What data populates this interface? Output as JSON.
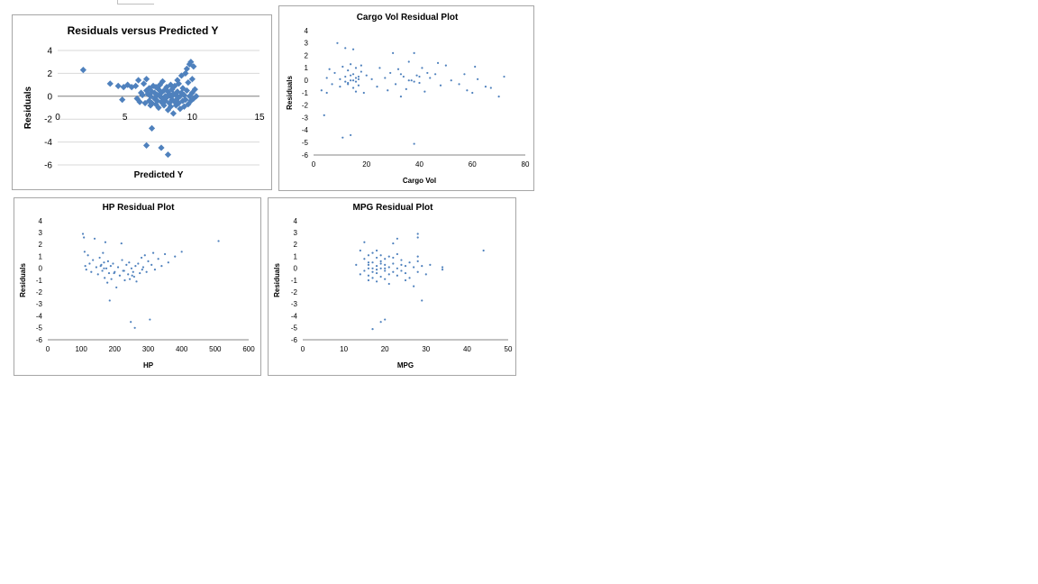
{
  "colors": {
    "marker": "#4f81bd",
    "gridline": "#d9d9d9",
    "axis": "#868686",
    "border": "#a6a6a6"
  },
  "chart_data": [
    {
      "id": "predicted",
      "type": "scatter",
      "title": "Residuals versus Predicted Y",
      "xlabel": "Predicted Y",
      "ylabel": "Residuals",
      "xlim": [
        0,
        15
      ],
      "ylim": [
        -6,
        4
      ],
      "xticks": [
        0,
        5,
        10,
        15
      ],
      "yticks": [
        -6,
        -4,
        -2,
        0,
        2,
        4
      ],
      "xticks_at_zero": true,
      "grid": "horizontal",
      "marker": "diamond",
      "points": [
        [
          1.9,
          2.3
        ],
        [
          3.9,
          1.1
        ],
        [
          4.5,
          0.9
        ],
        [
          4.8,
          -0.3
        ],
        [
          4.9,
          0.8
        ],
        [
          5.2,
          1.0
        ],
        [
          5.5,
          0.8
        ],
        [
          5.8,
          0.9
        ],
        [
          5.9,
          -0.2
        ],
        [
          6.0,
          1.4
        ],
        [
          6.1,
          -0.5
        ],
        [
          6.2,
          0.3
        ],
        [
          6.3,
          0.1
        ],
        [
          6.4,
          1.1
        ],
        [
          6.5,
          -0.6
        ],
        [
          6.6,
          0.5
        ],
        [
          6.6,
          1.5
        ],
        [
          6.7,
          0.2
        ],
        [
          6.8,
          -0.4
        ],
        [
          6.9,
          -0.8
        ],
        [
          6.9,
          0.0
        ],
        [
          7.0,
          0.4
        ],
        [
          7.0,
          -0.6
        ],
        [
          7.1,
          0.9
        ],
        [
          7.2,
          -0.2
        ],
        [
          7.2,
          0.3
        ],
        [
          7.3,
          -0.7
        ],
        [
          7.4,
          0.1
        ],
        [
          7.4,
          -0.4
        ],
        [
          7.5,
          0.6
        ],
        [
          7.5,
          -1.0
        ],
        [
          7.6,
          0.0
        ],
        [
          7.6,
          1.0
        ],
        [
          7.7,
          -0.5
        ],
        [
          7.7,
          0.3
        ],
        [
          7.8,
          -0.2
        ],
        [
          7.8,
          1.3
        ],
        [
          7.9,
          -0.8
        ],
        [
          7.9,
          0.5
        ],
        [
          8.0,
          0.0
        ],
        [
          8.0,
          -0.4
        ],
        [
          8.1,
          0.8
        ],
        [
          8.1,
          -0.1
        ],
        [
          8.2,
          -1.2
        ],
        [
          8.2,
          0.4
        ],
        [
          8.3,
          -0.6
        ],
        [
          8.3,
          0.2
        ],
        [
          8.4,
          0.0
        ],
        [
          8.4,
          -0.9
        ],
        [
          8.5,
          0.6
        ],
        [
          8.5,
          -0.3
        ],
        [
          8.6,
          -1.5
        ],
        [
          8.6,
          0.2
        ],
        [
          8.7,
          0.9
        ],
        [
          8.7,
          -0.5
        ],
        [
          8.8,
          0.1
        ],
        [
          8.8,
          -0.8
        ],
        [
          8.9,
          0.4
        ],
        [
          8.9,
          -0.2
        ],
        [
          9.0,
          1.1
        ],
        [
          9.0,
          -0.6
        ],
        [
          9.1,
          0.0
        ],
        [
          9.1,
          -1.1
        ],
        [
          9.2,
          0.3
        ],
        [
          9.2,
          1.8
        ],
        [
          9.3,
          -0.4
        ],
        [
          9.3,
          0.7
        ],
        [
          9.4,
          -0.9
        ],
        [
          9.4,
          0.1
        ],
        [
          9.5,
          2.0
        ],
        [
          9.5,
          -0.3
        ],
        [
          9.6,
          0.5
        ],
        [
          9.6,
          2.4
        ],
        [
          9.7,
          -0.7
        ],
        [
          9.7,
          1.2
        ],
        [
          9.8,
          2.8
        ],
        [
          9.8,
          0.0
        ],
        [
          9.9,
          3.0
        ],
        [
          9.9,
          -0.4
        ],
        [
          10.0,
          1.5
        ],
        [
          10.0,
          0.3
        ],
        [
          10.1,
          2.6
        ],
        [
          10.1,
          -0.2
        ],
        [
          10.2,
          0.6
        ],
        [
          10.3,
          0.0
        ],
        [
          8.5,
          0.0
        ],
        [
          7.3,
          0.8
        ],
        [
          6.8,
          0.7
        ],
        [
          8.9,
          1.4
        ],
        [
          8.4,
          1.0
        ],
        [
          7.0,
          -2.8
        ],
        [
          6.6,
          -4.3
        ],
        [
          7.7,
          -4.5
        ],
        [
          8.2,
          -5.1
        ]
      ]
    },
    {
      "id": "cargo",
      "type": "scatter",
      "title": "Cargo Vol  Residual Plot",
      "xlabel": "Cargo Vol",
      "ylabel": "Residuals",
      "xlim": [
        0,
        80
      ],
      "ylim": [
        -6,
        4
      ],
      "xticks": [
        0,
        20,
        40,
        60,
        80
      ],
      "yticks": [
        -6,
        -5,
        -4,
        -3,
        -2,
        -1,
        0,
        1,
        2,
        3,
        4
      ],
      "grid": "none",
      "marker": "dot",
      "points": [
        [
          3,
          -0.8
        ],
        [
          4,
          -2.8
        ],
        [
          5,
          0.2
        ],
        [
          5,
          -1.0
        ],
        [
          6,
          0.9
        ],
        [
          7,
          -0.3
        ],
        [
          8,
          0.6
        ],
        [
          9,
          3.0
        ],
        [
          10,
          0.1
        ],
        [
          10,
          -0.5
        ],
        [
          11,
          1.1
        ],
        [
          11,
          -4.6
        ],
        [
          12,
          2.6
        ],
        [
          12,
          0.3
        ],
        [
          13,
          -0.2
        ],
        [
          13,
          0.8
        ],
        [
          14,
          0.0
        ],
        [
          14,
          -4.4
        ],
        [
          14,
          1.3
        ],
        [
          15,
          -0.6
        ],
        [
          15,
          0.5
        ],
        [
          15,
          2.5
        ],
        [
          16,
          -0.1
        ],
        [
          16,
          1.0
        ],
        [
          16,
          -0.9
        ],
        [
          17,
          0.3
        ],
        [
          17,
          -0.4
        ],
        [
          18,
          0.7
        ],
        [
          18,
          1.2
        ],
        [
          19,
          -1.0
        ],
        [
          20,
          0.4
        ],
        [
          22,
          0.1
        ],
        [
          24,
          -0.5
        ],
        [
          25,
          1.0
        ],
        [
          27,
          0.2
        ],
        [
          28,
          -0.8
        ],
        [
          29,
          0.6
        ],
        [
          30,
          2.2
        ],
        [
          31,
          -0.3
        ],
        [
          32,
          0.9
        ],
        [
          33,
          -1.3
        ],
        [
          34,
          0.3
        ],
        [
          35,
          -0.7
        ],
        [
          36,
          1.5
        ],
        [
          37,
          0.0
        ],
        [
          38,
          -5.1
        ],
        [
          38,
          2.2
        ],
        [
          39,
          0.4
        ],
        [
          40,
          -0.2
        ],
        [
          41,
          1.0
        ],
        [
          42,
          -0.9
        ],
        [
          44,
          0.2
        ],
        [
          46,
          0.5
        ],
        [
          47,
          1.4
        ],
        [
          48,
          -0.4
        ],
        [
          50,
          1.2
        ],
        [
          52,
          0.0
        ],
        [
          55,
          -0.3
        ],
        [
          57,
          0.5
        ],
        [
          58,
          -0.8
        ],
        [
          60,
          -1.0
        ],
        [
          61,
          1.1
        ],
        [
          62,
          0.1
        ],
        [
          65,
          -0.5
        ],
        [
          67,
          -0.6
        ],
        [
          70,
          -1.3
        ],
        [
          72,
          0.3
        ],
        [
          13,
          -0.3
        ],
        [
          14,
          0.4
        ],
        [
          15,
          0.0
        ],
        [
          16,
          0.2
        ],
        [
          12,
          -0.1
        ],
        [
          17,
          0.1
        ],
        [
          36,
          0.0
        ],
        [
          38,
          -0.1
        ],
        [
          40,
          0.3
        ],
        [
          43,
          0.6
        ],
        [
          33,
          0.5
        ]
      ]
    },
    {
      "id": "hp",
      "type": "scatter",
      "title": "HP  Residual Plot",
      "xlabel": "HP",
      "ylabel": "Residuals",
      "xlim": [
        0,
        600
      ],
      "ylim": [
        -6,
        4
      ],
      "xticks": [
        0,
        100,
        200,
        300,
        400,
        500,
        600
      ],
      "yticks": [
        -6,
        -5,
        -4,
        -3,
        -2,
        -1,
        0,
        1,
        2,
        3,
        4
      ],
      "grid": "none",
      "marker": "dot",
      "points": [
        [
          105,
          2.9
        ],
        [
          108,
          2.6
        ],
        [
          110,
          1.4
        ],
        [
          112,
          0.2
        ],
        [
          115,
          -0.1
        ],
        [
          120,
          1.1
        ],
        [
          125,
          0.4
        ],
        [
          130,
          -0.3
        ],
        [
          135,
          0.7
        ],
        [
          140,
          2.5
        ],
        [
          145,
          0.1
        ],
        [
          150,
          -0.5
        ],
        [
          155,
          0.9
        ],
        [
          160,
          0.3
        ],
        [
          163,
          -0.2
        ],
        [
          165,
          1.3
        ],
        [
          168,
          0.5
        ],
        [
          170,
          -0.8
        ],
        [
          172,
          2.2
        ],
        [
          175,
          0.0
        ],
        [
          178,
          -1.2
        ],
        [
          180,
          0.6
        ],
        [
          183,
          -0.4
        ],
        [
          185,
          -2.7
        ],
        [
          188,
          0.2
        ],
        [
          190,
          -0.9
        ],
        [
          195,
          0.4
        ],
        [
          200,
          -0.3
        ],
        [
          205,
          -1.6
        ],
        [
          210,
          0.1
        ],
        [
          215,
          -0.6
        ],
        [
          220,
          2.1
        ],
        [
          222,
          0.7
        ],
        [
          225,
          -0.2
        ],
        [
          230,
          -1.0
        ],
        [
          235,
          0.3
        ],
        [
          240,
          -0.5
        ],
        [
          243,
          0.5
        ],
        [
          245,
          -0.9
        ],
        [
          248,
          -4.5
        ],
        [
          250,
          0.0
        ],
        [
          255,
          -0.3
        ],
        [
          258,
          -0.7
        ],
        [
          260,
          -5.0
        ],
        [
          262,
          0.2
        ],
        [
          265,
          -1.1
        ],
        [
          270,
          0.4
        ],
        [
          275,
          -0.4
        ],
        [
          280,
          0.9
        ],
        [
          285,
          0.1
        ],
        [
          290,
          1.1
        ],
        [
          295,
          -0.3
        ],
        [
          300,
          0.6
        ],
        [
          305,
          -4.3
        ],
        [
          310,
          0.3
        ],
        [
          315,
          1.3
        ],
        [
          320,
          -0.1
        ],
        [
          330,
          0.8
        ],
        [
          340,
          0.2
        ],
        [
          350,
          1.2
        ],
        [
          360,
          0.5
        ],
        [
          380,
          1.0
        ],
        [
          400,
          1.4
        ],
        [
          510,
          2.3
        ],
        [
          158,
          0.2
        ],
        [
          168,
          0.0
        ],
        [
          198,
          -0.4
        ],
        [
          228,
          -0.2
        ],
        [
          252,
          -0.6
        ],
        [
          282,
          -0.1
        ]
      ]
    },
    {
      "id": "mpg",
      "type": "scatter",
      "title": "MPG  Residual Plot",
      "xlabel": "MPG",
      "ylabel": "Residuals",
      "xlim": [
        0,
        50
      ],
      "ylim": [
        -6,
        4
      ],
      "xticks": [
        0,
        10,
        20,
        30,
        40,
        50
      ],
      "yticks": [
        -6,
        -5,
        -4,
        -3,
        -2,
        -1,
        0,
        1,
        2,
        3,
        4
      ],
      "grid": "none",
      "marker": "dot",
      "points": [
        [
          13,
          0.3
        ],
        [
          14,
          1.5
        ],
        [
          14,
          -0.5
        ],
        [
          15,
          2.2
        ],
        [
          15,
          0.8
        ],
        [
          15,
          -0.2
        ],
        [
          16,
          1.1
        ],
        [
          16,
          0.3
        ],
        [
          16,
          -0.6
        ],
        [
          16,
          -1.0
        ],
        [
          16,
          0.0
        ],
        [
          17,
          -5.1
        ],
        [
          17,
          0.5
        ],
        [
          17,
          -0.3
        ],
        [
          17,
          1.3
        ],
        [
          17,
          -0.8
        ],
        [
          18,
          0.2
        ],
        [
          18,
          -0.4
        ],
        [
          18,
          0.9
        ],
        [
          18,
          -1.1
        ],
        [
          18,
          1.5
        ],
        [
          19,
          -4.5
        ],
        [
          19,
          0.0
        ],
        [
          19,
          0.6
        ],
        [
          19,
          -0.7
        ],
        [
          19,
          1.1
        ],
        [
          20,
          0.3
        ],
        [
          20,
          -0.2
        ],
        [
          20,
          -4.3
        ],
        [
          20,
          0.8
        ],
        [
          20,
          -0.9
        ],
        [
          21,
          0.1
        ],
        [
          21,
          -0.5
        ],
        [
          21,
          1.0
        ],
        [
          21,
          -1.3
        ],
        [
          22,
          2.1
        ],
        [
          22,
          0.4
        ],
        [
          22,
          -0.3
        ],
        [
          22,
          0.9
        ],
        [
          23,
          2.5
        ],
        [
          23,
          0.0
        ],
        [
          23,
          -0.6
        ],
        [
          23,
          1.2
        ],
        [
          24,
          0.3
        ],
        [
          24,
          -0.2
        ],
        [
          24,
          0.7
        ],
        [
          25,
          -1.0
        ],
        [
          25,
          0.2
        ],
        [
          25,
          -0.4
        ],
        [
          26,
          0.5
        ],
        [
          26,
          -0.8
        ],
        [
          27,
          -1.5
        ],
        [
          27,
          0.1
        ],
        [
          28,
          2.9
        ],
        [
          28,
          2.6
        ],
        [
          28,
          0.6
        ],
        [
          28,
          -0.3
        ],
        [
          28,
          1.0
        ],
        [
          29,
          -2.7
        ],
        [
          29,
          0.2
        ],
        [
          30,
          -0.5
        ],
        [
          31,
          0.3
        ],
        [
          34,
          -0.1
        ],
        [
          34,
          0.1
        ],
        [
          44,
          1.5
        ],
        [
          16,
          0.5
        ],
        [
          17,
          0.0
        ],
        [
          18,
          -0.1
        ],
        [
          19,
          0.4
        ],
        [
          20,
          0.0
        ]
      ]
    }
  ]
}
